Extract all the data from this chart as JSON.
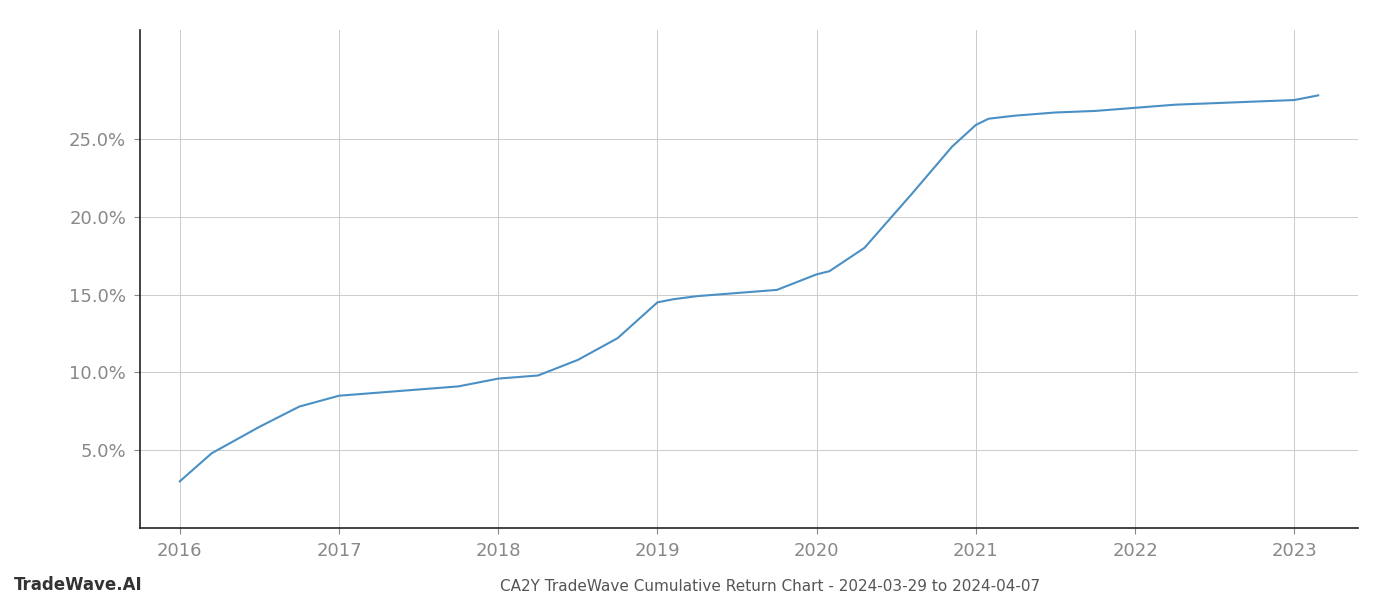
{
  "title": "CA2Y TradeWave Cumulative Return Chart - 2024-03-29 to 2024-04-07",
  "watermark": "TradeWave.AI",
  "line_color": "#4a90c4",
  "background_color": "#ffffff",
  "grid_color": "#cccccc",
  "x_values": [
    2016.0,
    2016.2,
    2016.5,
    2016.75,
    2017.0,
    2017.25,
    2017.5,
    2017.75,
    2018.0,
    2018.25,
    2018.5,
    2018.75,
    2019.0,
    2019.1,
    2019.25,
    2019.5,
    2019.75,
    2020.0,
    2020.08,
    2020.3,
    2020.6,
    2020.85,
    2021.0,
    2021.08,
    2021.25,
    2021.5,
    2021.75,
    2022.0,
    2022.25,
    2022.5,
    2022.75,
    2023.0,
    2023.15
  ],
  "y_values": [
    0.03,
    0.048,
    0.065,
    0.078,
    0.085,
    0.087,
    0.089,
    0.091,
    0.096,
    0.098,
    0.108,
    0.122,
    0.145,
    0.147,
    0.149,
    0.151,
    0.153,
    0.163,
    0.165,
    0.18,
    0.215,
    0.245,
    0.259,
    0.263,
    0.265,
    0.267,
    0.268,
    0.27,
    0.272,
    0.273,
    0.274,
    0.275,
    0.278
  ],
  "xlim": [
    2015.75,
    2023.4
  ],
  "ylim": [
    0.0,
    0.32
  ],
  "yticks": [
    0.05,
    0.1,
    0.15,
    0.2,
    0.25
  ],
  "ytick_labels": [
    "5.0%",
    "10.0%",
    "15.0%",
    "20.0%",
    "25.0%"
  ],
  "xticks": [
    2016,
    2017,
    2018,
    2019,
    2020,
    2021,
    2022,
    2023
  ],
  "xtick_labels": [
    "2016",
    "2017",
    "2018",
    "2019",
    "2020",
    "2021",
    "2022",
    "2023"
  ],
  "line_width": 1.5,
  "title_fontsize": 11,
  "tick_fontsize": 13,
  "watermark_fontsize": 12,
  "title_color": "#555555",
  "tick_color": "#888888",
  "watermark_color": "#333333",
  "spine_color": "#222222"
}
